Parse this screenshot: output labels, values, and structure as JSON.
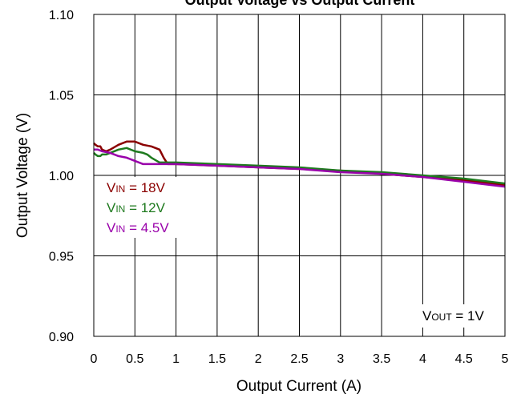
{
  "chart_data": {
    "type": "line",
    "title": "Output Voltage vs Output Current",
    "xlabel": "Output Current (A)",
    "ylabel": "Output Voltage (V)",
    "xlim": [
      0,
      5
    ],
    "ylim": [
      0.9,
      1.1
    ],
    "grid": true,
    "x_ticks": [
      "0",
      "0.5",
      "1",
      "1.5",
      "2",
      "2.5",
      "3",
      "3.5",
      "4",
      "4.5",
      "5"
    ],
    "y_ticks": [
      "0.90",
      "0.95",
      "1.00",
      "1.05",
      "1.10"
    ],
    "legend": [
      {
        "prefix": "V",
        "sub": "IN",
        "text": " = 18V"
      },
      {
        "prefix": "V",
        "sub": "IN",
        "text": " = 12V"
      },
      {
        "prefix": "V",
        "sub": "IN",
        "text": " = 4.5V"
      }
    ],
    "annotation": {
      "prefix": "V",
      "sub": "OUT",
      "text": " = 1V"
    },
    "series": [
      {
        "color": "#8B0000",
        "x": [
          0,
          0.02,
          0.05,
          0.08,
          0.1,
          0.15,
          0.2,
          0.3,
          0.4,
          0.5,
          0.6,
          0.7,
          0.8,
          0.85,
          0.9,
          1.0,
          1.5,
          2.0,
          2.5,
          3.0,
          3.5,
          4.0,
          4.5,
          5.0
        ],
        "y": [
          1.02,
          1.019,
          1.018,
          1.018,
          1.016,
          1.015,
          1.016,
          1.019,
          1.021,
          1.021,
          1.019,
          1.018,
          1.016,
          1.011,
          1.007,
          1.007,
          1.006,
          1.005,
          1.004,
          1.003,
          1.001,
          0.999,
          0.997,
          0.994
        ]
      },
      {
        "color": "#1E7A1E",
        "x": [
          0,
          0.02,
          0.05,
          0.08,
          0.1,
          0.15,
          0.2,
          0.3,
          0.4,
          0.5,
          0.6,
          0.65,
          0.7,
          0.8,
          1.0,
          1.5,
          2.0,
          2.5,
          3.0,
          3.5,
          4.0,
          4.5,
          5.0
        ],
        "y": [
          1.014,
          1.013,
          1.012,
          1.012,
          1.013,
          1.013,
          1.014,
          1.016,
          1.017,
          1.015,
          1.014,
          1.013,
          1.011,
          1.008,
          1.008,
          1.007,
          1.006,
          1.005,
          1.003,
          1.002,
          1.0,
          0.998,
          0.995
        ]
      },
      {
        "color": "#9900AA",
        "x": [
          0,
          0.05,
          0.1,
          0.2,
          0.3,
          0.4,
          0.5,
          0.6,
          0.8,
          1.0,
          1.5,
          2.0,
          2.5,
          3.0,
          3.5,
          4.0,
          4.5,
          5.0
        ],
        "y": [
          1.016,
          1.016,
          1.015,
          1.014,
          1.012,
          1.011,
          1.009,
          1.007,
          1.007,
          1.007,
          1.006,
          1.005,
          1.004,
          1.002,
          1.001,
          0.999,
          0.996,
          0.993
        ]
      }
    ]
  }
}
